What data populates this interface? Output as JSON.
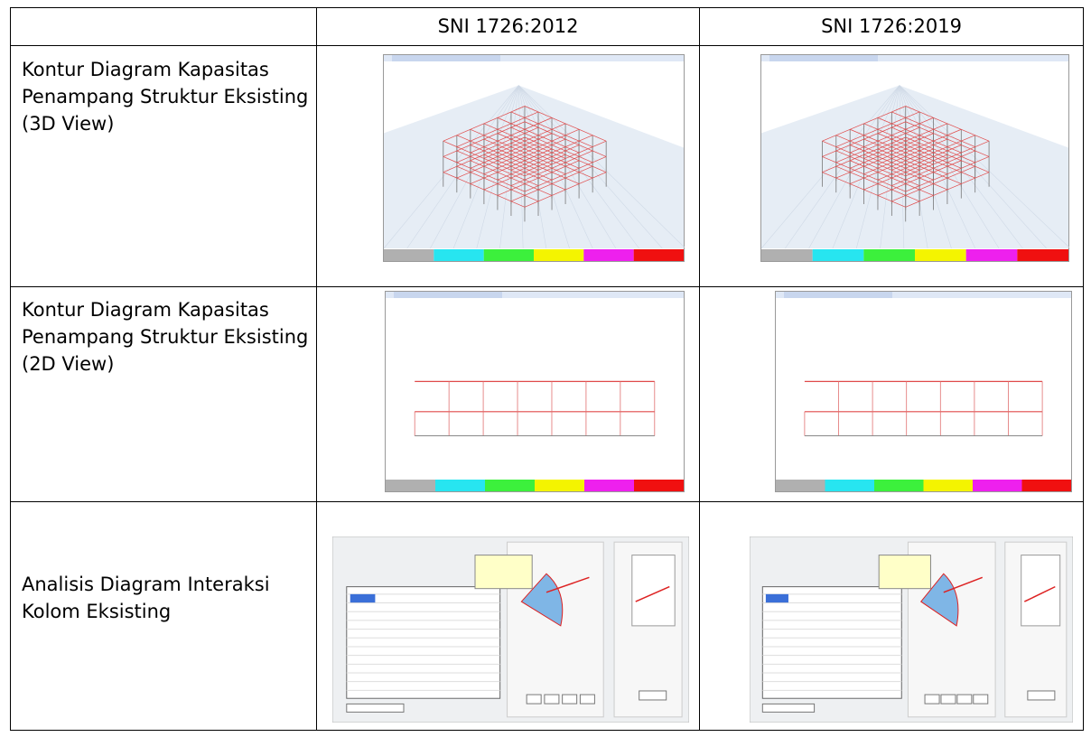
{
  "table": {
    "header": {
      "col1": "SNI 1726:2012",
      "col2": "SNI 1726:2019"
    },
    "rows": [
      {
        "label": "Kontur Diagram Kapasitas Penampang Struktur Eksisting (3D View)"
      },
      {
        "label": "Kontur Diagram Kapasitas Penampang Struktur Eksisting (2D View)"
      },
      {
        "label": "Analisis Diagram Interaksi Kolom Eksisting"
      }
    ]
  }
}
